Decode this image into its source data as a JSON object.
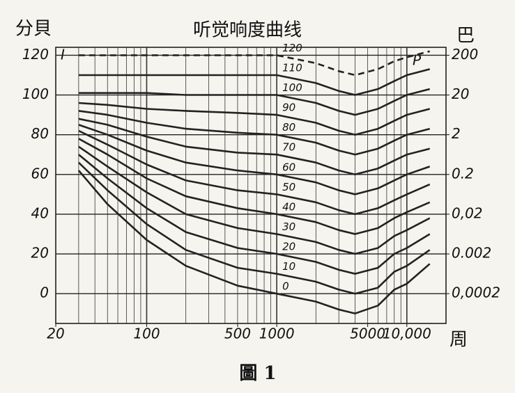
{
  "chart_data": {
    "type": "line",
    "title": "听觉响度曲线",
    "y_label": "分貝",
    "y2_label": "巴",
    "x_label": "周",
    "caption": "圖 1",
    "annotations": [
      "I",
      "P"
    ],
    "x": [
      30,
      50,
      100,
      200,
      500,
      1000,
      2000,
      3000,
      4000,
      6000,
      8000,
      10000,
      15000
    ],
    "xlim": [
      20,
      20000
    ],
    "xscale": "log",
    "xticks": [
      20,
      100,
      500,
      1000,
      5000,
      {
        "value": 10000,
        "label": "10,000"
      }
    ],
    "ylim": [
      -15,
      124
    ],
    "yticks": [
      0,
      20,
      40,
      60,
      80,
      100,
      120
    ],
    "y2lim": [
      3.56e-05,
      317
    ],
    "y2scale": "log",
    "y2ticks": [
      200,
      20,
      2,
      0.2,
      {
        "value": 0.02,
        "label": "0,02"
      },
      0.002,
      {
        "value": 0.0002,
        "label": "0,0002"
      }
    ],
    "grid": true,
    "series": [
      {
        "name": "0",
        "color": "#222222",
        "values": [
          62,
          45,
          27,
          14,
          4,
          0,
          -4,
          -8,
          -10,
          -6,
          2,
          5,
          15
        ]
      },
      {
        "name": "10",
        "color": "#222222",
        "values": [
          66,
          52,
          35,
          22,
          13,
          10,
          6,
          2,
          0,
          3,
          11,
          14,
          22
        ]
      },
      {
        "name": "20",
        "color": "#222222",
        "values": [
          70,
          58,
          43,
          31,
          23,
          20,
          16,
          12,
          10,
          13,
          20,
          23,
          30
        ]
      },
      {
        "name": "30",
        "color": "#222222",
        "values": [
          74,
          64,
          51,
          40,
          33,
          30,
          26,
          22,
          20,
          23,
          29,
          32,
          38
        ]
      },
      {
        "name": "40",
        "color": "#222222",
        "values": [
          78,
          70,
          58,
          49,
          43,
          40,
          36,
          32,
          30,
          33,
          38,
          41,
          46
        ]
      },
      {
        "name": "50",
        "color": "#222222",
        "values": [
          82,
          75,
          65,
          57,
          52,
          50,
          46,
          42,
          40,
          43,
          47,
          50,
          55
        ]
      },
      {
        "name": "60",
        "color": "#222222",
        "values": [
          85,
          80,
          72,
          66,
          62,
          60,
          56,
          52,
          50,
          53,
          57,
          60,
          64
        ]
      },
      {
        "name": "70",
        "color": "#222222",
        "values": [
          88,
          85,
          79,
          74,
          71,
          70,
          66,
          62,
          60,
          63,
          67,
          70,
          73
        ]
      },
      {
        "name": "80",
        "color": "#222222",
        "values": [
          92,
          90,
          86,
          83,
          81,
          80,
          76,
          72,
          70,
          73,
          77,
          80,
          83
        ]
      },
      {
        "name": "90",
        "color": "#222222",
        "values": [
          96,
          95,
          93,
          92,
          91,
          90,
          86,
          82,
          80,
          83,
          87,
          90,
          93
        ]
      },
      {
        "name": "100",
        "color": "#222222",
        "values": [
          101,
          101,
          101,
          100,
          100,
          100,
          96,
          92,
          90,
          93,
          97,
          100,
          103
        ]
      },
      {
        "name": "110",
        "color": "#222222",
        "values": [
          110,
          110,
          110,
          110,
          110,
          110,
          106,
          102,
          100,
          103,
          107,
          110,
          113
        ]
      },
      {
        "name": "120",
        "color": "#222222",
        "style": "dashed",
        "values": [
          120,
          120,
          120,
          120,
          120,
          120,
          116,
          112,
          110,
          113,
          117,
          119,
          122
        ]
      }
    ]
  }
}
